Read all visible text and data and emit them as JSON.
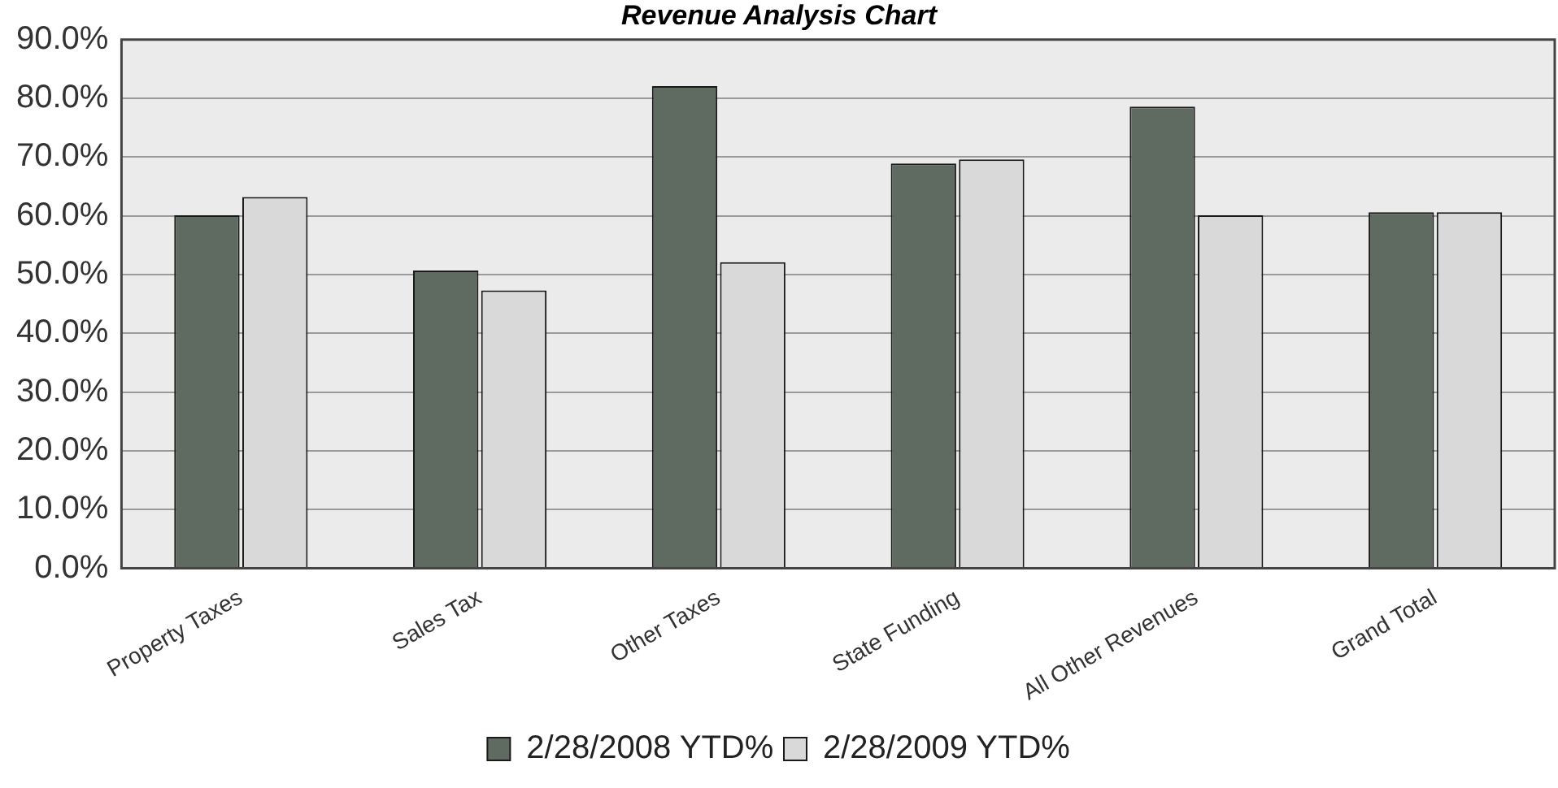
{
  "chart_data": {
    "type": "bar",
    "title": "Revenue Analysis Chart",
    "categories": [
      "Property Taxes",
      "Sales Tax",
      "Other Taxes",
      "State Funding",
      "All Other Revenues",
      "Grand Total"
    ],
    "series": [
      {
        "name": "2/28/2008 YTD%",
        "color": "#5f6a60",
        "values": [
          60.1,
          50.7,
          82.1,
          68.9,
          78.6,
          60.6
        ]
      },
      {
        "name": "2/28/2009 YTD%",
        "color": "#d9d9d9",
        "values": [
          63.2,
          47.3,
          52.1,
          69.6,
          60.1,
          60.6
        ]
      }
    ],
    "ylim": [
      0,
      90
    ],
    "yticks": [
      {
        "value": 0,
        "label": "0.0%"
      },
      {
        "value": 10,
        "label": "10.0%"
      },
      {
        "value": 20,
        "label": "20.0%"
      },
      {
        "value": 30,
        "label": "30.0%"
      },
      {
        "value": 40,
        "label": "40.0%"
      },
      {
        "value": 50,
        "label": "50.0%"
      },
      {
        "value": 60,
        "label": "60.0%"
      },
      {
        "value": 70,
        "label": "70.0%"
      },
      {
        "value": 80,
        "label": "80.0%"
      },
      {
        "value": 90,
        "label": "90.0%"
      }
    ],
    "grid": "y",
    "legend": "bottom"
  }
}
